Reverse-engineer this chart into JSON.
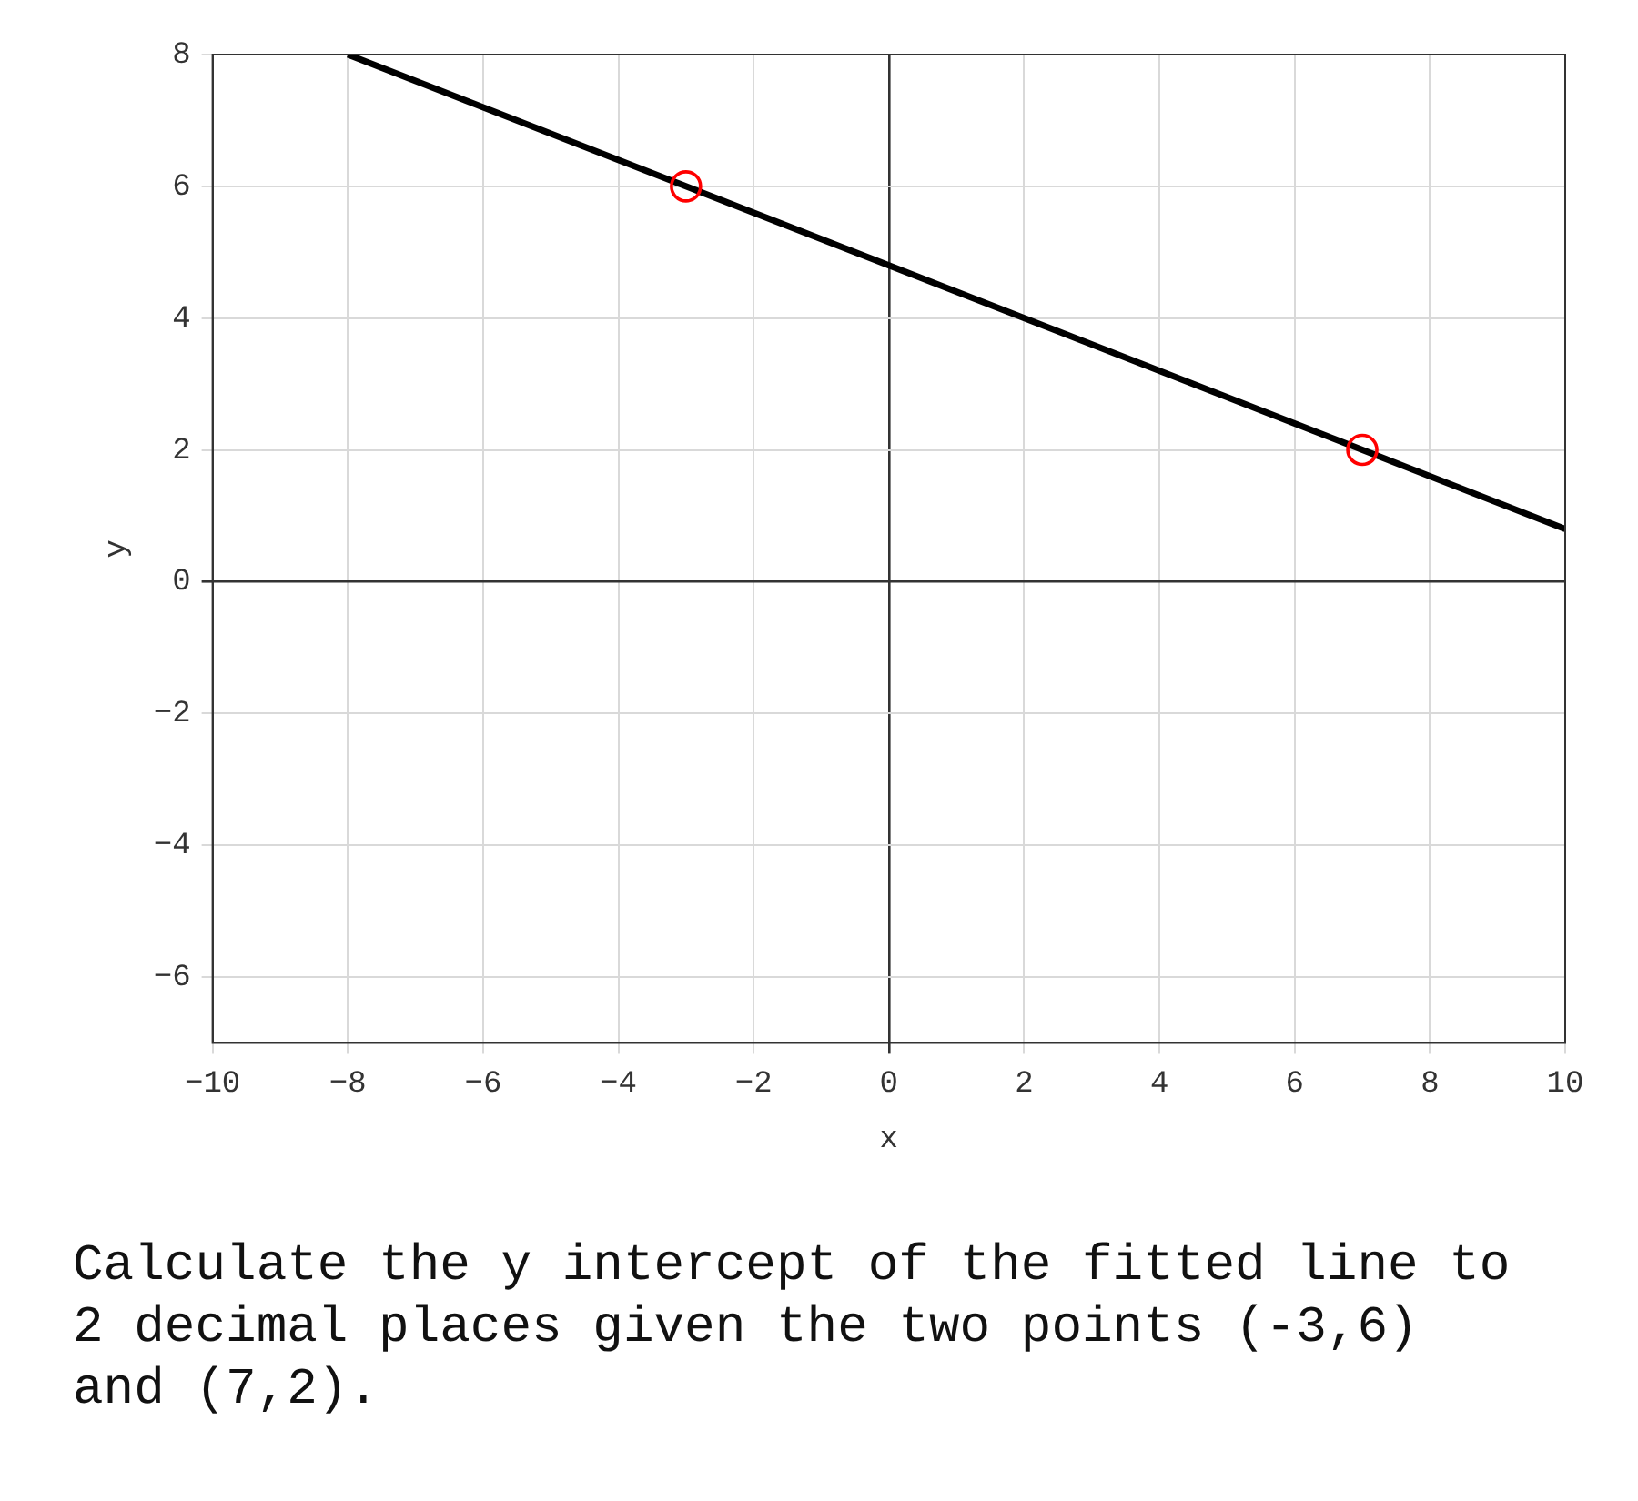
{
  "chart_data": {
    "type": "line",
    "xlabel": "x",
    "ylabel": "y",
    "xlim": [
      -10,
      10
    ],
    "xticks": [
      -10,
      -8,
      -6,
      -4,
      -2,
      0,
      2,
      4,
      6,
      8,
      10
    ],
    "ylim": [
      -7,
      8
    ],
    "yticks": [
      -6,
      -4,
      -2,
      0,
      2,
      4,
      6,
      8
    ],
    "grid": true,
    "legend": false,
    "series": [
      {
        "type": "line",
        "x": [
          -8,
          10
        ],
        "values": [
          8,
          0.8
        ],
        "color": "#000000",
        "marker": "none",
        "line_style": "solid"
      },
      {
        "type": "scatter",
        "x": [
          -3,
          7
        ],
        "values": [
          6,
          2
        ],
        "color": "#ff0000",
        "marker": "circle"
      }
    ],
    "annotations": [
      "Calculate the y intercept of the fitted line to 2 decimal places given the two points (-3,6) and (7,2)."
    ]
  }
}
